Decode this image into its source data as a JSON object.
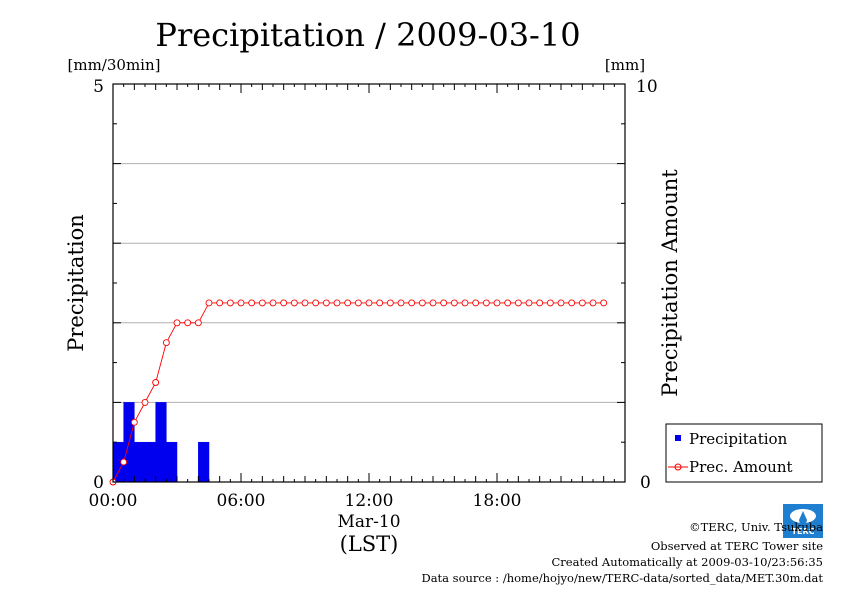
{
  "chart_data": {
    "type": "bar+line",
    "title": "Precipitation / 2009-03-10",
    "left_unit": "[mm/30min]",
    "right_unit": "[mm]",
    "ylabel_left": "Precipitation",
    "ylabel_right": "Precipitation Amount",
    "ylim_left": [
      0,
      5
    ],
    "ylim_right": [
      0,
      10
    ],
    "left_tick_labels": [
      "5",
      "0"
    ],
    "right_tick_labels": [
      "10",
      "0"
    ],
    "x_tick_labels": [
      "00:00",
      "06:00",
      "12:00",
      "18:00"
    ],
    "x_date_label": "Mar-10",
    "x_timezone_label": "(LST)",
    "x_range_hours": [
      0,
      24
    ],
    "grid": "horizontal",
    "legend_position": "bottom-right",
    "series": [
      {
        "name": "Precipitation",
        "type": "bar",
        "axis": "left",
        "color": "#0000ee",
        "x_hours": [
          0.0,
          0.5,
          1.0,
          1.5,
          2.0,
          2.5,
          3.0,
          3.5,
          4.0,
          4.5
        ],
        "values": [
          0.5,
          1.0,
          0.5,
          0.5,
          1.0,
          0.5,
          0.0,
          0.0,
          0.5,
          0.0
        ]
      },
      {
        "name": "Prec. Amount",
        "type": "line",
        "axis": "right",
        "color": "#ff0000",
        "x_hours": [
          0.0,
          0.5,
          1.0,
          1.5,
          2.0,
          2.5,
          3.0,
          3.5,
          4.0,
          4.5,
          5.0,
          5.5,
          6.0,
          6.5,
          7.0,
          7.5,
          8.0,
          8.5,
          9.0,
          9.5,
          10.0,
          10.5,
          11.0,
          11.5,
          12.0,
          12.5,
          13.0,
          13.5,
          14.0,
          14.5,
          15.0,
          15.5,
          16.0,
          16.5,
          17.0,
          17.5,
          18.0,
          18.5,
          19.0,
          19.5,
          20.0,
          20.5,
          21.0,
          21.5,
          22.0,
          22.5,
          23.0
        ],
        "values": [
          0.0,
          0.5,
          1.5,
          2.0,
          2.5,
          3.5,
          4.0,
          4.0,
          4.0,
          4.5,
          4.5,
          4.5,
          4.5,
          4.5,
          4.5,
          4.5,
          4.5,
          4.5,
          4.5,
          4.5,
          4.5,
          4.5,
          4.5,
          4.5,
          4.5,
          4.5,
          4.5,
          4.5,
          4.5,
          4.5,
          4.5,
          4.5,
          4.5,
          4.5,
          4.5,
          4.5,
          4.5,
          4.5,
          4.5,
          4.5,
          4.5,
          4.5,
          4.5,
          4.5,
          4.5,
          4.5,
          4.5
        ]
      }
    ]
  },
  "credits": {
    "copyright": "©TERC, Univ. Tsukuba",
    "observed": "Observed at TERC Tower site",
    "created": "Created Automatically at 2009-03-10/23:56:35",
    "source": "Data source : /home/hojyo/new/TERC-data/sorted_data/MET.30m.dat",
    "logo_text": "TERC",
    "logo_color": "#1e7fd0"
  }
}
